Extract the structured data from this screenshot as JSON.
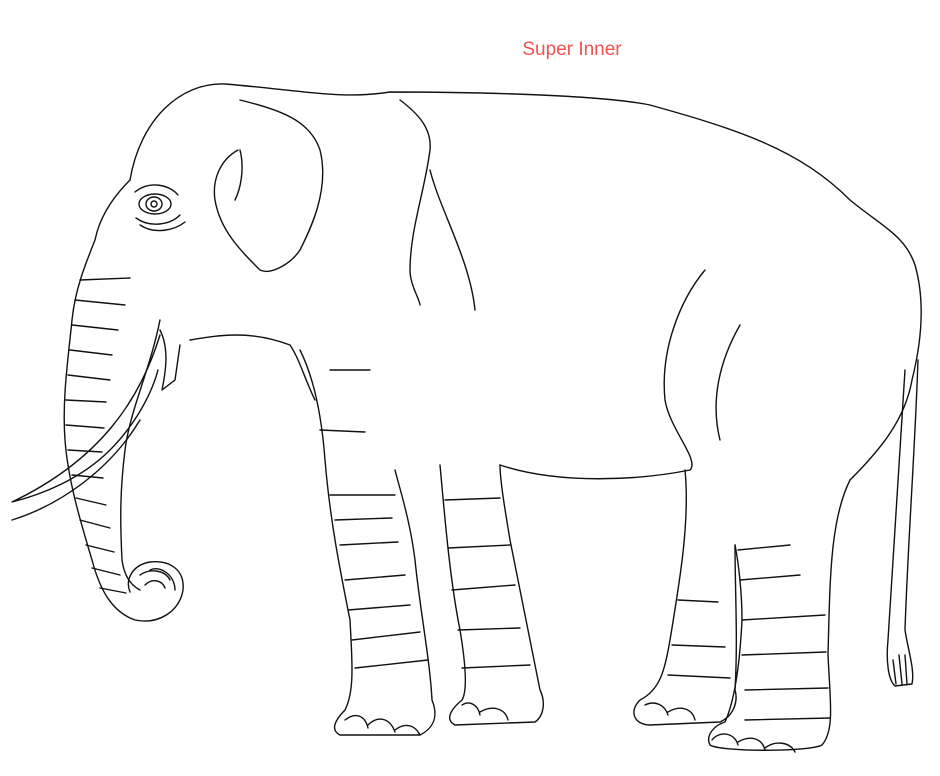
{
  "caption": "Super Inner"
}
